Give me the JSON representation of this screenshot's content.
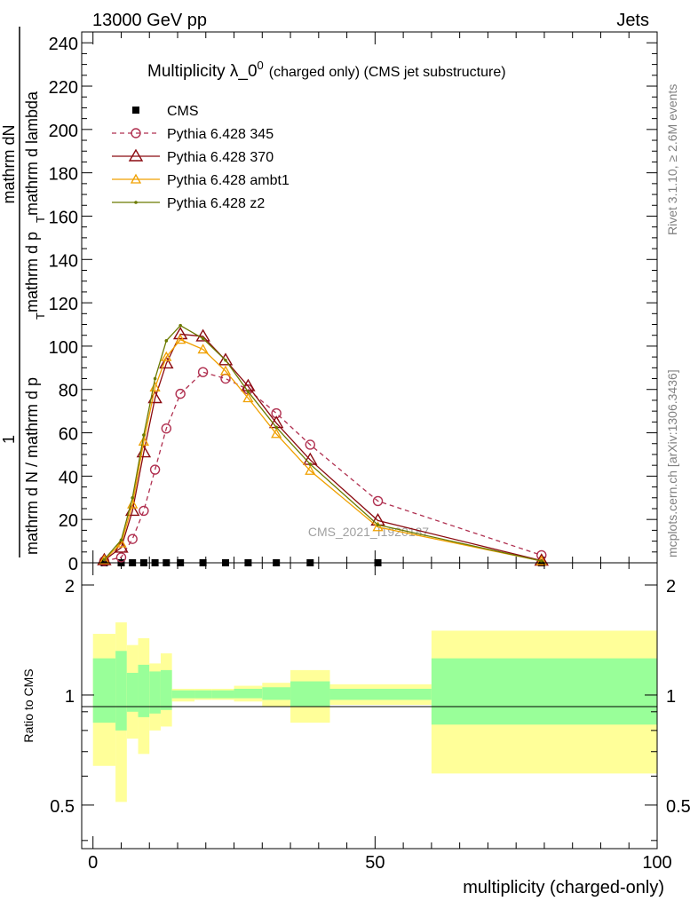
{
  "header": {
    "left": "13000 GeV pp",
    "right": "Jets"
  },
  "side_labels": {
    "rivet": "Rivet 3.1.10, ≥ 2.6M events",
    "mcplots": "mcplots.cern.ch [arXiv:1306.3436]"
  },
  "chart_data": [
    {
      "type": "line",
      "title": "Multiplicity λ_0",
      "title_sup": "0",
      "title_suffix": "(charged only) (CMS jet substructure)",
      "watermark": "CMS_2021_I1920187",
      "ylabel_top": "1",
      "ylabel_numer": "mathrm dN",
      "ylabel_denom_1": "mathrm d N / mathrm d p",
      "ylabel_denom_1_sub": "T",
      "ylabel_denom_2": "mathrm d p",
      "ylabel_denom_2_sub": "T",
      "ylabel_denom_3": "mathrm d lambda",
      "xlim": [
        -2,
        100
      ],
      "ylim": [
        0,
        245
      ],
      "yticks": [
        0,
        20,
        40,
        60,
        80,
        100,
        120,
        140,
        160,
        180,
        200,
        220,
        240
      ],
      "legend_position": "top-left",
      "series": [
        {
          "name": "CMS",
          "color": "#000000",
          "marker": "square",
          "x": [
            2,
            5,
            7,
            9,
            11,
            13,
            15.5,
            19.5,
            23.5,
            27.5,
            32.5,
            38.5,
            50.5,
            79.5
          ],
          "y": [
            0,
            0,
            0,
            0,
            0,
            0,
            0,
            0,
            0,
            0,
            0,
            0,
            0,
            0
          ]
        },
        {
          "name": "Pythia 6.428 345",
          "color": "#b03050",
          "marker": "circle-open",
          "dashed": true,
          "x": [
            2,
            5,
            7,
            9,
            11,
            13,
            15.5,
            19.5,
            23.5,
            27.5,
            32.5,
            38.5,
            50.5,
            79.5
          ],
          "y": [
            0.8,
            2.5,
            11,
            24,
            43,
            62,
            78,
            88,
            85,
            80,
            69,
            54.5,
            28.5,
            3.5
          ]
        },
        {
          "name": "Pythia 6.428 370",
          "color": "#8b0a10",
          "marker": "triangle-open",
          "dashed": false,
          "x": [
            2,
            5,
            7,
            9,
            11,
            13,
            15.5,
            19.5,
            23.5,
            27.5,
            32.5,
            38.5,
            50.5,
            79.5
          ],
          "y": [
            1.2,
            7,
            24,
            51,
            76,
            92,
            105.5,
            104.5,
            93.5,
            81.5,
            64.5,
            47.5,
            19.5,
            1
          ]
        },
        {
          "name": "Pythia 6.428 ambt1",
          "color": "#f0a000",
          "marker": "triangle-open-small",
          "dashed": false,
          "x": [
            2,
            5,
            7,
            9,
            11,
            13,
            15.5,
            19.5,
            23.5,
            27.5,
            32.5,
            38.5,
            50.5,
            79.5
          ],
          "y": [
            1.3,
            9,
            27,
            56,
            81,
            95,
            103,
            98.5,
            88.5,
            76,
            59.5,
            42.5,
            16.5,
            0.8
          ]
        },
        {
          "name": "Pythia 6.428 z2",
          "color": "#6b7a00",
          "marker": "dot",
          "dashed": false,
          "x": [
            2,
            5,
            7,
            9,
            11,
            13,
            15.5,
            19.5,
            23.5,
            27.5,
            32.5,
            38.5,
            50.5,
            79.5
          ],
          "y": [
            1.5,
            10.5,
            30,
            59,
            85,
            102.5,
            109.5,
            103.5,
            93.5,
            79,
            62.5,
            45.5,
            17.5,
            0.8
          ]
        }
      ]
    },
    {
      "type": "area",
      "ylabel": "Ratio to CMS",
      "xlabel": "multiplicity (charged-only)",
      "xlim": [
        -2,
        100
      ],
      "ylim": [
        0.38,
        2.3
      ],
      "xticks": [
        0,
        50,
        100
      ],
      "yticks": [
        0.5,
        1,
        2
      ],
      "reference_line": 1,
      "bands": {
        "inner_color": "#99ff99",
        "outer_color": "#ffff99",
        "bins": [
          {
            "x_low": 0,
            "x_high": 4,
            "inner": [
              0.84,
              1.26
            ],
            "outer": [
              0.64,
              1.47
            ]
          },
          {
            "x_low": 4,
            "x_high": 6,
            "inner": [
              0.8,
              1.32
            ],
            "outer": [
              0.51,
              1.58
            ]
          },
          {
            "x_low": 6,
            "x_high": 8,
            "inner": [
              0.9,
              1.15
            ],
            "outer": [
              0.76,
              1.37
            ]
          },
          {
            "x_low": 8,
            "x_high": 10,
            "inner": [
              0.87,
              1.21
            ],
            "outer": [
              0.69,
              1.43
            ]
          },
          {
            "x_low": 10,
            "x_high": 12,
            "inner": [
              0.89,
              1.16
            ],
            "outer": [
              0.8,
              1.22
            ]
          },
          {
            "x_low": 12,
            "x_high": 14,
            "inner": [
              0.91,
              1.17
            ],
            "outer": [
              0.82,
              1.3
            ]
          },
          {
            "x_low": 14,
            "x_high": 18,
            "inner": [
              0.98,
              1.03
            ],
            "outer": [
              0.96,
              1.04
            ]
          },
          {
            "x_low": 18,
            "x_high": 21,
            "inner": [
              0.98,
              1.03
            ],
            "outer": [
              0.97,
              1.04
            ]
          },
          {
            "x_low": 21,
            "x_high": 25,
            "inner": [
              0.98,
              1.03
            ],
            "outer": [
              0.97,
              1.04
            ]
          },
          {
            "x_low": 25,
            "x_high": 30,
            "inner": [
              0.98,
              1.04
            ],
            "outer": [
              0.96,
              1.06
            ]
          },
          {
            "x_low": 30,
            "x_high": 35,
            "inner": [
              0.97,
              1.05
            ],
            "outer": [
              0.93,
              1.08
            ]
          },
          {
            "x_low": 35,
            "x_high": 42,
            "inner": [
              0.93,
              1.09
            ],
            "outer": [
              0.84,
              1.17
            ]
          },
          {
            "x_low": 42,
            "x_high": 60,
            "inner": [
              0.97,
              1.04
            ],
            "outer": [
              0.94,
              1.07
            ]
          },
          {
            "x_low": 60,
            "x_high": 100,
            "inner": [
              0.83,
              1.26
            ],
            "outer": [
              0.61,
              1.5
            ]
          }
        ]
      }
    }
  ]
}
